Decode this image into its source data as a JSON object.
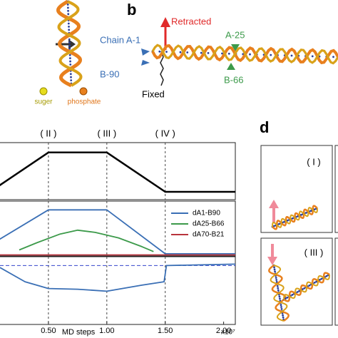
{
  "panel_a": {
    "sugar_label": "suger",
    "phosphate_label": "phosphate"
  },
  "panel_b": {
    "letter": "b",
    "retracted": "Retracted",
    "chain": "Chain A-1",
    "a25": "A-25",
    "b90": "B-90",
    "b66": "B-66",
    "fixed": "Fixed"
  },
  "panel_c": {
    "stages": [
      "( II )",
      "( III )",
      "( IV )"
    ],
    "xlabel": "MD steps",
    "xscale": "x10⁷"
  },
  "panel_d": {
    "letter": "d",
    "stages": [
      "( I )",
      "( III )"
    ]
  },
  "chart_data": [
    {
      "type": "line",
      "xlim": [
        0,
        2.1
      ],
      "ylim": [
        -0.2,
        1.25
      ],
      "x": [
        0,
        0.5,
        1.0,
        1.5,
        2.1
      ],
      "values": [
        0,
        1,
        1,
        0,
        0
      ],
      "color": "#000000"
    },
    {
      "type": "line",
      "xlim": [
        0,
        2.1
      ],
      "ylim": [
        0,
        1
      ],
      "legend": "right",
      "series": [
        {
          "name": "dA1-B90",
          "color": "#3a6fb5",
          "x": [
            0,
            0.5,
            1.0,
            1.5,
            2.1
          ],
          "values": [
            0.2,
            0.84,
            0.84,
            0.04,
            0.04
          ]
        },
        {
          "name": "dA25-B66",
          "color": "#3c9a4a",
          "x": [
            0.25,
            0.4,
            0.6,
            0.75,
            0.9,
            1.1,
            1.3,
            1.4
          ],
          "values": [
            0.11,
            0.24,
            0.4,
            0.47,
            0.43,
            0.33,
            0.17,
            0.08
          ]
        },
        {
          "name": "dA70-B21",
          "color": "#b8343c",
          "x": [
            0,
            2.1
          ],
          "values": [
            0.02,
            0.02
          ]
        }
      ]
    },
    {
      "type": "line",
      "xlim": [
        0,
        2.1
      ],
      "ylim": [
        0,
        1
      ],
      "xticks": [
        {
          "value": 0.5,
          "label": "0.50"
        },
        {
          "value": 1.0,
          "label": "1.00"
        },
        {
          "value": 1.5,
          "label": "1.50"
        },
        {
          "value": 2.0,
          "label": "2.00"
        }
      ],
      "reference": 0.87,
      "reference_color": "#3344cc",
      "series": [
        {
          "color": "#3a6fb5",
          "x": [
            0.085,
            0.3,
            0.5,
            0.75,
            1.0,
            1.3,
            1.49,
            1.51,
            2.1
          ],
          "values": [
            0.84,
            0.63,
            0.53,
            0.52,
            0.49,
            0.58,
            0.63,
            0.87,
            0.89
          ]
        }
      ]
    }
  ]
}
